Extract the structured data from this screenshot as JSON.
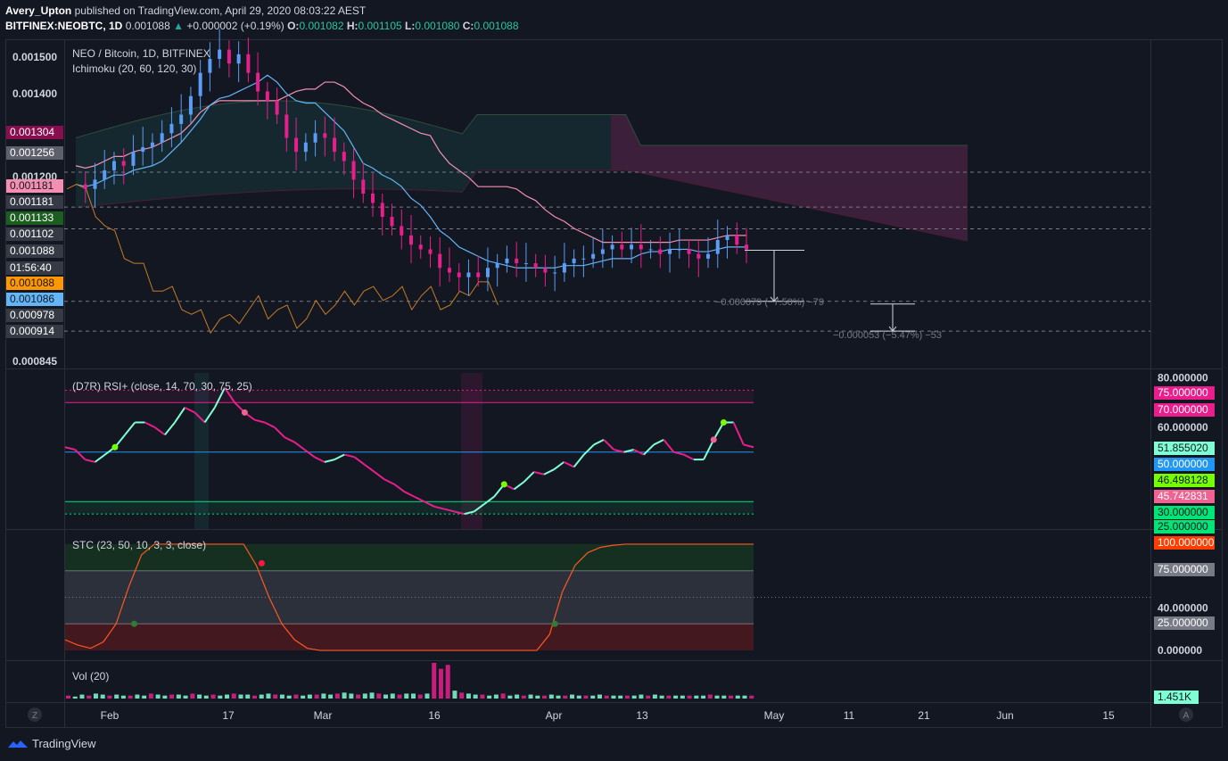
{
  "header": {
    "author": "Avery_Upton",
    "published_text": "published on TradingView.com, April 29, 2020 08:03:22 AEST",
    "symbol": "BITFINEX:NEOBTC, 1D",
    "last": "0.001088",
    "change": "+0.000002 (+0.19%)",
    "o_label": "O:",
    "o": "0.001082",
    "h_label": "H:",
    "h": "0.001105",
    "l_label": "L:",
    "l": "0.001080",
    "c_label": "C:",
    "c": "0.001088"
  },
  "main_legend": {
    "title": "NEO / Bitcoin, 1D, BITFINEX",
    "indicator": "Ichimoku (20, 60, 120, 30)"
  },
  "rsi_legend": "(D7R) RSI+ (close, 14, 70, 30, 75, 25)",
  "stc_legend": "STC (23, 50, 10, 3, 3, close)",
  "vol_legend": "Vol (20)",
  "measure_labels": [
    "−0.000079 (−7.50%) −79",
    "−0.000053 (−5.47%) −53"
  ],
  "price_axis": {
    "ticks": [
      "0.001500",
      "0.001400",
      "0.001200",
      "0.000845"
    ],
    "badges": [
      {
        "text": "0.001304",
        "bg": "#880e4f",
        "fg": "#ffffff"
      },
      {
        "text": "0.001256",
        "bg": "#5d606b",
        "fg": "#ffffff"
      },
      {
        "text": "0.001181",
        "bg": "#f48fb1",
        "fg": "#131722"
      },
      {
        "text": "0.001181",
        "bg": "#363a45",
        "fg": "#ffffff"
      },
      {
        "text": "0.001133",
        "bg": "#1b5e20",
        "fg": "#ffffff"
      },
      {
        "text": "0.001102",
        "bg": "#363a45",
        "fg": "#ffffff"
      },
      {
        "text": "0.001088",
        "bg": "#363a45",
        "fg": "#ffffff"
      },
      {
        "text": "01:56:40",
        "bg": "#363a45",
        "fg": "#ffffff"
      },
      {
        "text": "0.001088",
        "bg": "#ff9800",
        "fg": "#131722"
      },
      {
        "text": "0.001086",
        "bg": "#64b5f6",
        "fg": "#131722"
      },
      {
        "text": "0.000978",
        "bg": "#363a45",
        "fg": "#ffffff"
      },
      {
        "text": "0.000914",
        "bg": "#363a45",
        "fg": "#ffffff"
      }
    ]
  },
  "rsi_axis": {
    "ticks": [
      "80.000000",
      "60.000000"
    ],
    "badges": [
      {
        "text": "75.000000",
        "bg": "#e91e8c",
        "fg": "#ffffff"
      },
      {
        "text": "70.000000",
        "bg": "#e91e8c",
        "fg": "#ffffff"
      },
      {
        "text": "51.855020",
        "bg": "#7fffd4",
        "fg": "#131722"
      },
      {
        "text": "50.000000",
        "bg": "#2196f3",
        "fg": "#ffffff"
      },
      {
        "text": "46.498128",
        "bg": "#76ff03",
        "fg": "#131722"
      },
      {
        "text": "45.742831",
        "bg": "#f06292",
        "fg": "#ffffff"
      },
      {
        "text": "30.000000",
        "bg": "#00e676",
        "fg": "#131722"
      },
      {
        "text": "25.000000",
        "bg": "#00e676",
        "fg": "#131722"
      }
    ]
  },
  "stc_axis": {
    "ticks": [
      "40.000000",
      "0.000000"
    ],
    "badges": [
      {
        "text": "100.000000",
        "bg": "#ff3d00",
        "fg": "#ffffff"
      },
      {
        "text": "75.000000",
        "bg": "#787b86",
        "fg": "#ffffff"
      },
      {
        "text": "25.000000",
        "bg": "#787b86",
        "fg": "#ffffff"
      }
    ]
  },
  "vol_axis": {
    "badge": {
      "text": "1.451K",
      "bg": "#7fffd4",
      "fg": "#131722"
    }
  },
  "time_axis": [
    "Feb",
    "17",
    "Mar",
    "16",
    "Apr",
    "13",
    "May",
    "11",
    "21",
    "Jun",
    "15"
  ],
  "corner_left": "Z",
  "corner_right": "A",
  "footer": {
    "brand": "TradingView"
  },
  "chart_data": {
    "type": "candlestick",
    "title": "NEO / Bitcoin, 1D, BITFINEX",
    "ylim": [
      0.000845,
      0.00155
    ],
    "x_range": [
      "2020-01-23",
      "2020-06-19"
    ],
    "levels": {
      "tenkan": 0.001086,
      "kijun": 0.001181,
      "cloud_a": 0.001256,
      "cloud_b": 0.001304,
      "chikou": 0.001088,
      "last_close": 0.001088,
      "measure_1_target": 0.000978,
      "measure_2_target": 0.000914
    },
    "ohlc_summary": {
      "open": 0.001082,
      "high": 0.001105,
      "low": 0.00108,
      "close": 0.001088,
      "change": 2e-06,
      "change_pct": 0.19
    },
    "measurements": [
      {
        "delta": -7.9e-05,
        "pct": -7.5,
        "ticks": -79
      },
      {
        "delta": -5.3e-05,
        "pct": -5.47,
        "ticks": -53
      }
    ],
    "close_path": [
      0.00123,
      0.00122,
      0.00124,
      0.00126,
      0.00128,
      0.00127,
      0.0013,
      0.00131,
      0.00132,
      0.00134,
      0.00136,
      0.00138,
      0.00142,
      0.00147,
      0.0015,
      0.00152,
      0.00149,
      0.00151,
      0.00147,
      0.00143,
      0.00141,
      0.00138,
      0.00133,
      0.0013,
      0.00132,
      0.00134,
      0.00133,
      0.0013,
      0.00128,
      0.00124,
      0.00121,
      0.00119,
      0.00116,
      0.00114,
      0.00112,
      0.0011,
      0.00109,
      0.00108,
      0.00105,
      0.00104,
      0.00103,
      0.00104,
      0.00103,
      0.00105,
      0.00106,
      0.00107,
      0.00106,
      0.00106,
      0.00105,
      0.00104,
      0.00104,
      0.00106,
      0.00107,
      0.00107,
      0.00108,
      0.00109,
      0.0011,
      0.00109,
      0.0011,
      0.00109,
      0.00109,
      0.00108,
      0.00109,
      0.00109,
      0.00108,
      0.00107,
      0.00108,
      0.00111,
      0.00112,
      0.0011,
      0.00109
    ],
    "rsi": {
      "levels": [
        75,
        70,
        50,
        30,
        25
      ],
      "ylim": [
        20,
        82
      ],
      "values": [
        52,
        51,
        47,
        46,
        49,
        52,
        57,
        62,
        62,
        60,
        57,
        62,
        68,
        66,
        62,
        68,
        76,
        70,
        66,
        63,
        62,
        60,
        56,
        54,
        51,
        48,
        46,
        47,
        49,
        48,
        45,
        42,
        39,
        37,
        34,
        32,
        30,
        28,
        27,
        26,
        25,
        26,
        29,
        32,
        37,
        35,
        38,
        42,
        41,
        43,
        46,
        44,
        49,
        53,
        55,
        51,
        50,
        51,
        49,
        53,
        55,
        50,
        49,
        47,
        47,
        55,
        62,
        62,
        53,
        52
      ],
      "last": 51.85502
    },
    "stc": {
      "levels": [
        100,
        75,
        25,
        0
      ],
      "ylim": [
        -5,
        110
      ],
      "values": [
        10,
        5,
        2,
        8,
        25,
        60,
        90,
        100,
        100,
        100,
        100,
        100,
        100,
        100,
        100,
        80,
        50,
        25,
        10,
        2,
        0,
        0,
        0,
        0,
        0,
        0,
        0,
        0,
        0,
        0,
        0,
        0,
        0,
        0,
        0,
        0,
        0,
        0,
        15,
        55,
        80,
        92,
        97,
        99,
        100,
        100,
        100,
        100,
        100,
        100,
        100,
        100,
        100,
        100,
        100
      ],
      "last": 100
    },
    "volume": {
      "last_label": "1.451K",
      "values": [
        3,
        2,
        4,
        3,
        5,
        4,
        3,
        4,
        3,
        3,
        4,
        3,
        5,
        4,
        3,
        4,
        4,
        3,
        5,
        4,
        3,
        4,
        3,
        4,
        5,
        4,
        4,
        3,
        4,
        5,
        4,
        4,
        3,
        4,
        3,
        4,
        4,
        5,
        4,
        5,
        6,
        5,
        4,
        5,
        6,
        5,
        4,
        5,
        4,
        5,
        5,
        4,
        5,
        36,
        30,
        34,
        8,
        6,
        5,
        4,
        4,
        3,
        4,
        5,
        3,
        4,
        3,
        4,
        3,
        3,
        4,
        3,
        3,
        4,
        3,
        3,
        3,
        4,
        3,
        3,
        3,
        3,
        3,
        4,
        3,
        4,
        3,
        3,
        3,
        3,
        3,
        3,
        3,
        4,
        3,
        3,
        3,
        3,
        3,
        3
      ]
    }
  }
}
